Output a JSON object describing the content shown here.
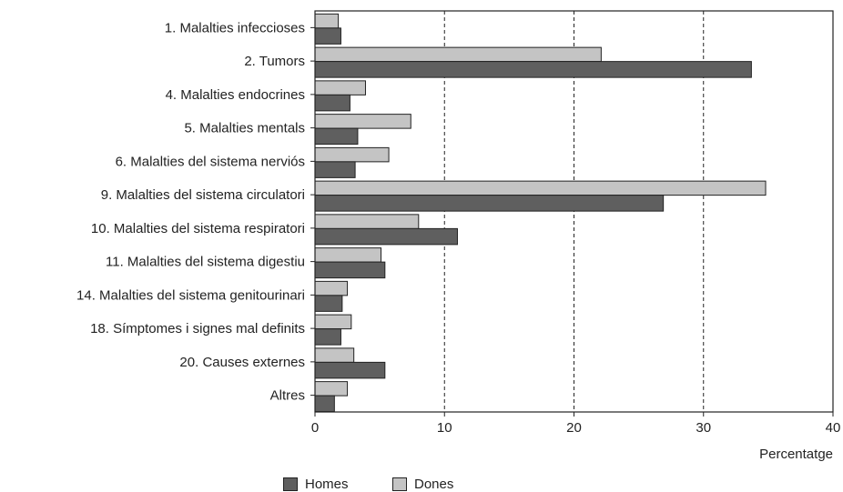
{
  "chart_data": {
    "type": "bar",
    "orientation": "horizontal",
    "categories": [
      "1. Malalties infeccioses",
      "2. Tumors",
      "4. Malalties endocrines",
      "5. Malalties mentals",
      "6. Malalties del sistema nerviós",
      "9. Malalties del sistema circulatori",
      "10. Malalties del sistema respiratori",
      "11. Malalties del sistema digestiu",
      "14. Malalties del sistema genitourinari",
      "18. Símptomes i signes mal definits",
      "20. Causes externes",
      "Altres"
    ],
    "series": [
      {
        "name": "Dones",
        "color": "#c4c4c4",
        "values": [
          1.8,
          22.1,
          3.9,
          7.4,
          5.7,
          34.8,
          8.0,
          5.1,
          2.5,
          2.8,
          3.0,
          2.5
        ]
      },
      {
        "name": "Homes",
        "color": "#5f5f5f",
        "values": [
          2.0,
          33.7,
          2.7,
          3.3,
          3.1,
          26.9,
          11.0,
          5.4,
          2.1,
          2.0,
          5.4,
          1.5
        ]
      }
    ],
    "xlabel": "Percentatge",
    "xlim": [
      0,
      40
    ],
    "xticks": [
      0,
      10,
      20,
      30,
      40
    ],
    "grid": "vertical dashed",
    "legend_position": "bottom",
    "legend": [
      "Homes",
      "Dones"
    ]
  }
}
